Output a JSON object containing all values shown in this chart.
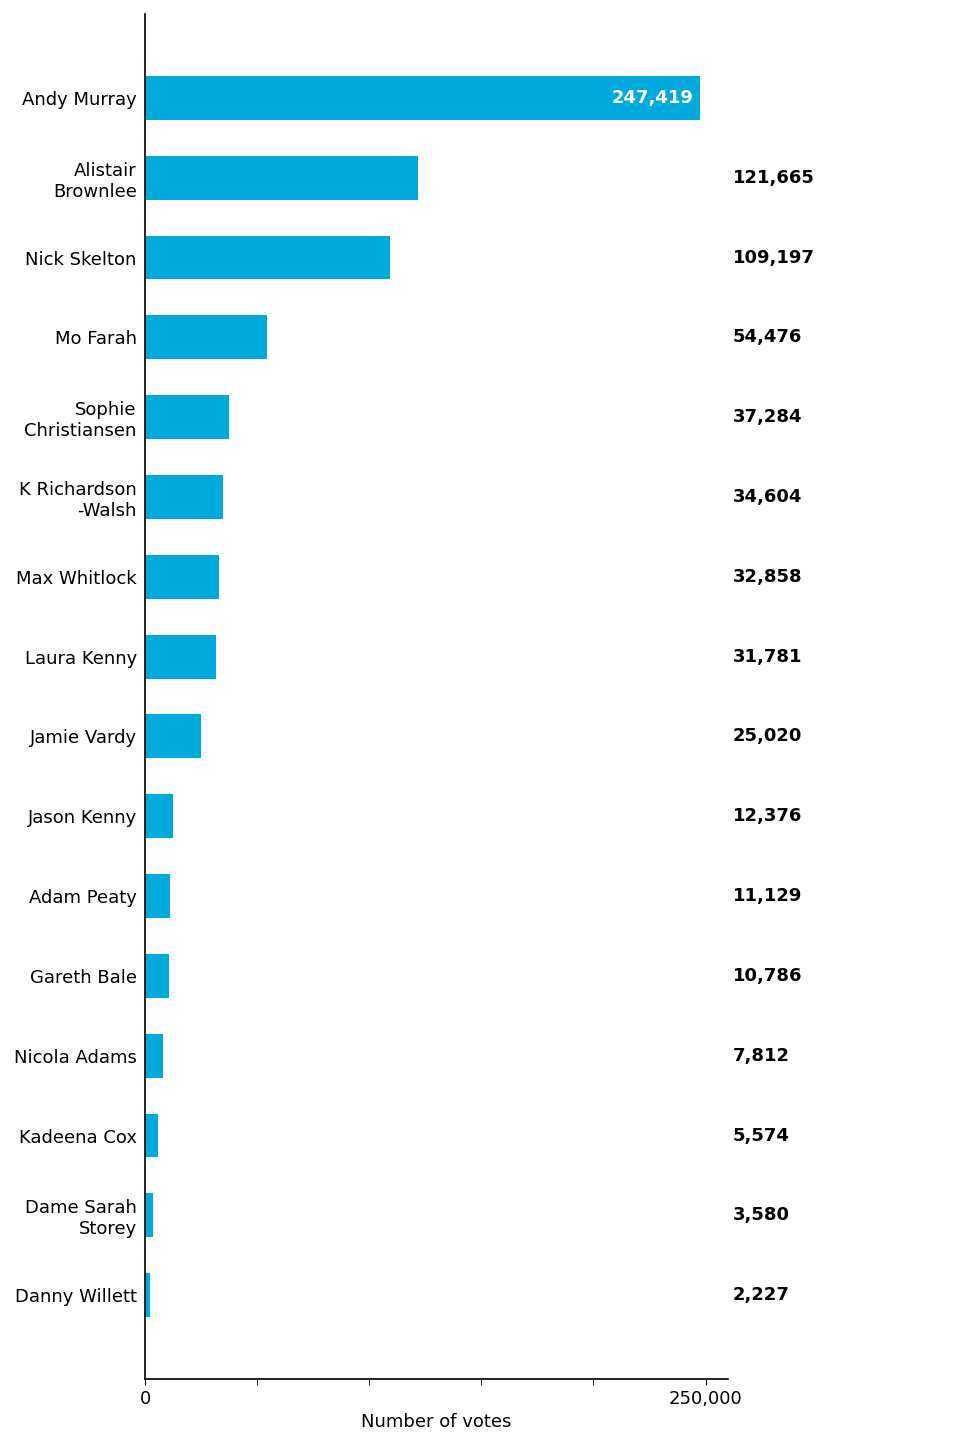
{
  "categories": [
    "Andy Murray",
    "Alistair\nBrownlee",
    "Nick Skelton",
    "Mo Farah",
    "Sophie\nChristiansen",
    "K Richardson\n-Walsh",
    "Max Whitlock",
    "Laura Kenny",
    "Jamie Vardy",
    "Jason Kenny",
    "Adam Peaty",
    "Gareth Bale",
    "Nicola Adams",
    "Kadeena Cox",
    "Dame Sarah\nStorey",
    "Danny Willett"
  ],
  "values": [
    247419,
    121665,
    109197,
    54476,
    37284,
    34604,
    32858,
    31781,
    25020,
    12376,
    11129,
    10786,
    7812,
    5574,
    3580,
    2227
  ],
  "bar_color": "#00aadd",
  "value_labels": [
    "247,419",
    "121,665",
    "109,197",
    "54,476",
    "37,284",
    "34,604",
    "32,858",
    "31,781",
    "25,020",
    "12,376",
    "11,129",
    "10,786",
    "7,812",
    "5,574",
    "3,580",
    "2,227"
  ],
  "xlabel": "Number of votes",
  "xlim": [
    0,
    260000
  ],
  "xticks": [
    0,
    250000
  ],
  "xtick_labels": [
    "0",
    "250,000"
  ],
  "background_color": "#ffffff",
  "bar_height": 0.55,
  "label_fontsize": 13,
  "value_fontsize": 13,
  "xlabel_fontsize": 13
}
